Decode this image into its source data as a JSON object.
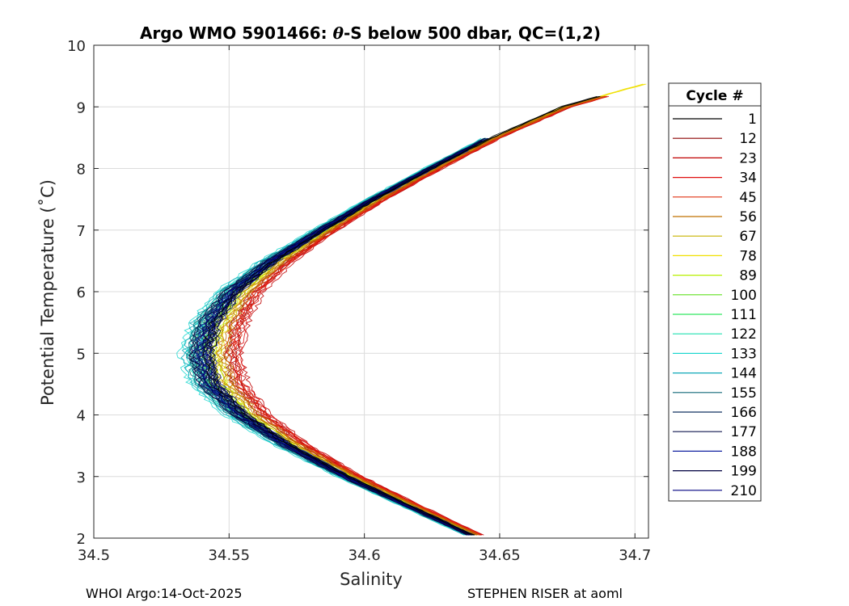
{
  "chart_data": {
    "type": "line",
    "title_prefix": "Argo WMO 5901466: ",
    "title_theta": "θ",
    "title_suffix": "-S below 500 dbar,  QC=(1,2)",
    "xlabel": "Salinity",
    "ylabel": "Potential Temperature (˚C)",
    "xlim": [
      34.5,
      34.705
    ],
    "ylim": [
      2,
      10
    ],
    "xticks": [
      34.5,
      34.55,
      34.6,
      34.65,
      34.7
    ],
    "xtick_labels": [
      "34.5",
      "34.55",
      "34.6",
      "34.65",
      "34.7"
    ],
    "yticks": [
      2,
      3,
      4,
      5,
      6,
      7,
      8,
      9,
      10
    ],
    "ytick_labels": [
      "2",
      "3",
      "4",
      "5",
      "6",
      "7",
      "8",
      "9",
      "10"
    ],
    "grid": true,
    "legend_title": "Cycle #",
    "legend_position": "right outside",
    "legend": [
      {
        "label": "1",
        "color": "#000000"
      },
      {
        "label": "12",
        "color": "#8b0000"
      },
      {
        "label": "23",
        "color": "#c00000"
      },
      {
        "label": "34",
        "color": "#e01010"
      },
      {
        "label": "45",
        "color": "#e03010"
      },
      {
        "label": "56",
        "color": "#c07000"
      },
      {
        "label": "67",
        "color": "#c8b400"
      },
      {
        "label": "78",
        "color": "#f0e000"
      },
      {
        "label": "89",
        "color": "#b8f000"
      },
      {
        "label": "100",
        "color": "#60e020"
      },
      {
        "label": "111",
        "color": "#30e860"
      },
      {
        "label": "122",
        "color": "#20e0b0"
      },
      {
        "label": "133",
        "color": "#20d8d0"
      },
      {
        "label": "144",
        "color": "#10a8b8"
      },
      {
        "label": "155",
        "color": "#106878"
      },
      {
        "label": "166",
        "color": "#103060"
      },
      {
        "label": "177",
        "color": "#101850"
      },
      {
        "label": "188",
        "color": "#1020a0"
      },
      {
        "label": "199",
        "color": "#000040"
      },
      {
        "label": "210",
        "color": "#000080"
      }
    ],
    "mean_profile": {
      "theta": [
        2.05,
        2.5,
        3.0,
        3.5,
        4.0,
        4.5,
        5.0,
        5.5,
        6.0,
        6.5,
        7.0,
        7.5,
        8.0,
        8.5,
        9.0,
        9.4
      ],
      "salinity": [
        34.64,
        34.618,
        34.594,
        34.573,
        34.556,
        34.545,
        34.542,
        34.545,
        34.553,
        34.567,
        34.585,
        34.604,
        34.625,
        34.647,
        34.673,
        34.705
      ]
    },
    "series_offsets": [
      0.0,
      0.006,
      0.008,
      0.007,
      0.006,
      0.004,
      0.003,
      0.002,
      0.001,
      -0.001,
      -0.002,
      -0.004,
      -0.005,
      -0.004,
      -0.003,
      -0.002,
      -0.002,
      -0.001,
      -0.002,
      -0.001
    ]
  },
  "footer": {
    "left": "WHOI Argo:14-Oct-2025",
    "right": "STEPHEN RISER at aoml"
  }
}
